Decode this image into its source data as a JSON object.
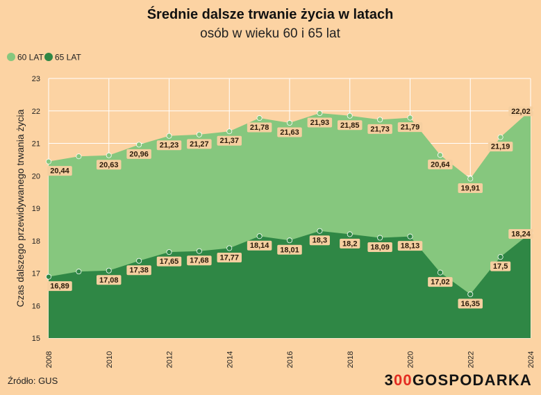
{
  "colors": {
    "background": "#fcd3a3",
    "series_60": "#86c77e",
    "series_65": "#2f8745",
    "grid": "#ffffff",
    "label_bg": "#f5cfa0",
    "brand_red": "#e32b21"
  },
  "chart_data": {
    "type": "area",
    "title": "Średnie dalsze trwanie życia w latach",
    "subtitle": "osób w wieku 60 i 65 lat",
    "ylabel": "Czas dalszego przewidywanego trwania życia",
    "xlabel": "",
    "ylim": [
      15,
      23
    ],
    "xlim": [
      2008,
      2024
    ],
    "yticks": [
      "15",
      "16",
      "17",
      "18",
      "19",
      "20",
      "21",
      "22",
      "23"
    ],
    "xticks": [
      "2008",
      "2010",
      "2012",
      "2014",
      "2016",
      "2018",
      "2020",
      "2022",
      "2024"
    ],
    "grid": true,
    "legend_position": "top-left",
    "x": [
      2008,
      2009,
      2010,
      2011,
      2012,
      2013,
      2014,
      2015,
      2016,
      2017,
      2018,
      2019,
      2020,
      2021,
      2022,
      2023,
      2024
    ],
    "series": [
      {
        "name": "60 LAT",
        "color": "#86c77e",
        "values": [
          20.44,
          20.6,
          20.63,
          20.96,
          21.23,
          21.27,
          21.37,
          21.78,
          21.63,
          21.93,
          21.85,
          21.73,
          21.79,
          20.64,
          19.91,
          21.19,
          22.02
        ],
        "labels": {
          "2008": "20,44",
          "2010": "20,63",
          "2011": "20,96",
          "2012": "21,23",
          "2013": "21,27",
          "2014": "21,37",
          "2015": "21,78",
          "2016": "21,63",
          "2017": "21,93",
          "2018": "21,85",
          "2019": "21,73",
          "2020": "21,79",
          "2021": "20,64",
          "2022": "19,91",
          "2023": "21,19",
          "2024": "22,02"
        }
      },
      {
        "name": "65 LAT",
        "color": "#2f8745",
        "values": [
          16.89,
          17.05,
          17.08,
          17.38,
          17.65,
          17.68,
          17.77,
          18.14,
          18.01,
          18.3,
          18.2,
          18.09,
          18.13,
          17.02,
          16.35,
          17.5,
          18.24
        ],
        "labels": {
          "2008": "16,89",
          "2010": "17,08",
          "2011": "17,38",
          "2012": "17,65",
          "2013": "17,68",
          "2014": "17,77",
          "2015": "18,14",
          "2016": "18,01",
          "2017": "18,3",
          "2018": "18,2",
          "2019": "18,09",
          "2020": "18,13",
          "2021": "17,02",
          "2022": "16,35",
          "2023": "17,5",
          "2024": "18,24"
        }
      }
    ]
  },
  "footer": {
    "source": "Źródło: GUS",
    "brand_prefix": "3",
    "brand_accent": "00",
    "brand_suffix": "GOSPODARKA"
  }
}
